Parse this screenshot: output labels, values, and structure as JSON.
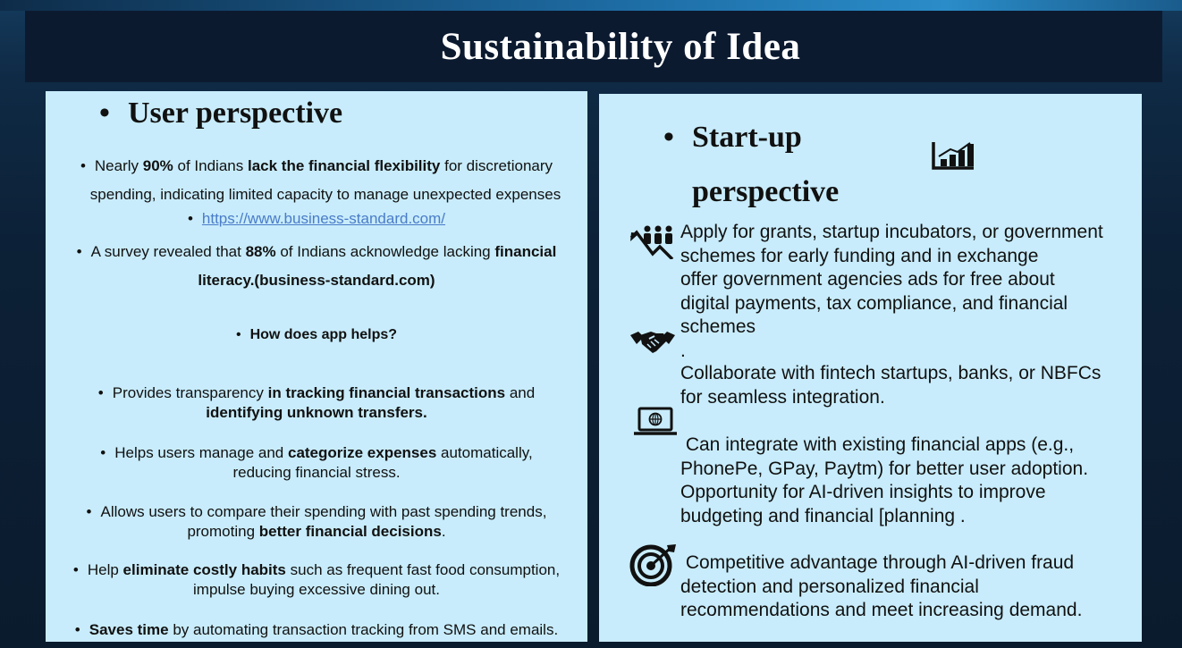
{
  "title": "Sustainability of  Idea",
  "left": {
    "heading": "User perspective",
    "bullet": "•",
    "p1": {
      "t1": "Nearly ",
      "b1": "90%",
      "t2": " of Indians ",
      "b2": "lack the financial flexibility",
      "t3": " for discretionary",
      "line2": "spending, indicating limited capacity to manage unexpected expenses"
    },
    "link": "https://www.business-standard.com/",
    "p2": {
      "t1": "A survey revealed that ",
      "b1": "88%",
      "t2": " of Indians acknowledge lacking ",
      "b2": "financial",
      "line2": "literacy.(business-standard.com)"
    },
    "how": "How does app helps?",
    "p3": {
      "t1": "Provides transparency ",
      "b1": "in tracking financial transactions",
      "t2": " and",
      "line2": "identifying unknown transfers."
    },
    "p4": {
      "t1": "Helps users manage and ",
      "b1": "categorize expenses",
      "t2": " automatically,",
      "line2": "reducing financial stress."
    },
    "p5": {
      "t1": "Allows users to compare their spending with past spending trends,",
      "t2": "promoting ",
      "b1": "better financial decisions",
      "t3": "."
    },
    "p6": {
      "t1": "Help ",
      "b1": "eliminate costly habits",
      "t2": " such as frequent fast food consumption,",
      "line2": "impulse buying excessive dining out."
    },
    "p7": {
      "b1": "Saves time",
      "t1": " by automating transaction tracking from SMS and emails."
    }
  },
  "right": {
    "heading1": "Start-up",
    "heading2": "perspective",
    "bullet": "•",
    "block1": [
      "Apply for grants, startup incubators, or government",
      "schemes for early funding and in exchange",
      "offer  government agencies ads for free about",
      "digital payments, tax compliance, and financial",
      "schemes",
      "."
    ],
    "block2": [
      "Collaborate with fintech startups, banks, or NBFCs",
      "for seamless integration."
    ],
    "block3": [
      " Can integrate with existing financial apps (e.g.,",
      "PhonePe, GPay, Paytm) for better user adoption.",
      "Opportunity for AI-driven insights to improve",
      "budgeting and financial [planning ."
    ],
    "block4": [
      " Competitive advantage through AI-driven fraud",
      "detection and personalized financial",
      "recommendations and meet increasing demand."
    ],
    "icons": [
      "bar-chart-icon",
      "growth-people-icon",
      "handshake-icon",
      "laptop-globe-icon",
      "target-icon"
    ]
  },
  "colors": {
    "panel": "#c8ecfb",
    "title_bar": "#0c1a30",
    "link": "#4a7cc9"
  }
}
